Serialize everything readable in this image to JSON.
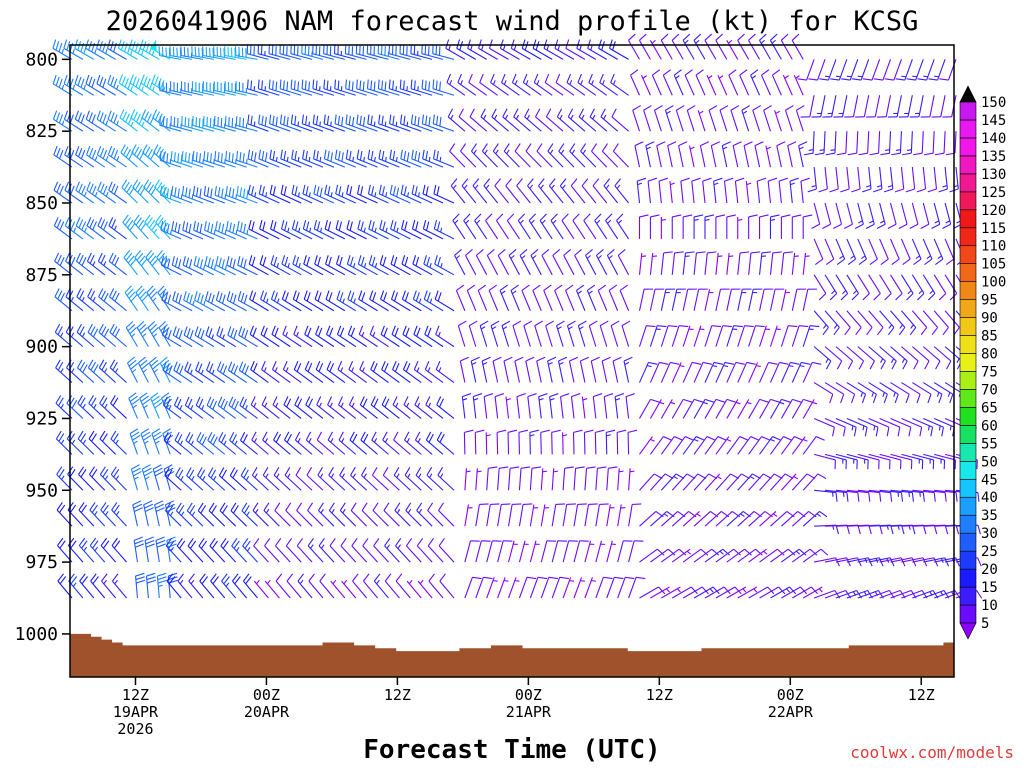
{
  "chart_data": {
    "type": "wind_barb_profile",
    "title": "2026041906 NAM forecast wind profile (kt) for KCSG",
    "xlabel": "Forecast Time (UTC)",
    "ylabel": "",
    "units": "kt",
    "y_axis": {
      "ticks": [
        "800",
        "825",
        "850",
        "875",
        "900",
        "925",
        "950",
        "975",
        "1000"
      ],
      "range": [
        795,
        1015
      ],
      "inverted": true
    },
    "x_axis": {
      "ticks": [
        {
          "hour": 6,
          "line1": "12Z",
          "line2": "19APR",
          "line3": "2026"
        },
        {
          "hour": 18,
          "line1": "00Z",
          "line2": "20APR",
          "line3": ""
        },
        {
          "hour": 30,
          "line1": "12Z",
          "line2": "",
          "line3": ""
        },
        {
          "hour": 42,
          "line1": "00Z",
          "line2": "21APR",
          "line3": ""
        },
        {
          "hour": 54,
          "line1": "12Z",
          "line2": "",
          "line3": ""
        },
        {
          "hour": 66,
          "line1": "00Z",
          "line2": "22APR",
          "line3": ""
        },
        {
          "hour": 78,
          "line1": "12Z",
          "line2": "",
          "line3": ""
        }
      ],
      "range": [
        0,
        81
      ]
    },
    "colorbar": {
      "levels": [
        "5",
        "10",
        "15",
        "20",
        "25",
        "30",
        "35",
        "40",
        "45",
        "50",
        "55",
        "60",
        "65",
        "70",
        "75",
        "80",
        "85",
        "90",
        "95",
        "100",
        "105",
        "110",
        "115",
        "120",
        "125",
        "130",
        "135",
        "140",
        "145",
        "150"
      ],
      "colors": [
        "#8b00ff",
        "#6a0cff",
        "#3c1cff",
        "#1a1aff",
        "#1e3cff",
        "#1e5eff",
        "#1e7eff",
        "#1a9eff",
        "#18c4ff",
        "#18e8e8",
        "#18e8b0",
        "#18e060",
        "#20e020",
        "#60e818",
        "#a8f018",
        "#e8f018",
        "#f0e018",
        "#f0c818",
        "#f0a818",
        "#f08818",
        "#f06818",
        "#f04818",
        "#f02818",
        "#f01818",
        "#f0185a",
        "#f01890",
        "#f018c0",
        "#f018e8",
        "#e818f0",
        "#c818f0"
      ]
    },
    "terrain": {
      "color": "#a0522d",
      "surface_pressure_mb": [
        1000,
        1000,
        1001,
        1002,
        1003,
        1004,
        1004,
        1004,
        1004,
        1004,
        1004,
        1004,
        1004,
        1004,
        1004,
        1004,
        1004,
        1004,
        1004,
        1004,
        1004,
        1004,
        1004,
        1004,
        1003,
        1003,
        1003,
        1004,
        1004,
        1005,
        1005,
        1006,
        1006,
        1006,
        1006,
        1006,
        1006,
        1005,
        1005,
        1005,
        1004,
        1004,
        1004,
        1005,
        1005,
        1005,
        1005,
        1005,
        1005,
        1005,
        1005,
        1005,
        1005,
        1006,
        1006,
        1006,
        1006,
        1006,
        1006,
        1006,
        1005,
        1005,
        1005,
        1005,
        1005,
        1005,
        1005,
        1005,
        1005,
        1005,
        1005,
        1005,
        1005,
        1005,
        1004,
        1004,
        1004,
        1004,
        1004,
        1004,
        1004,
        1004,
        1004,
        1003
      ]
    },
    "barbs": {
      "time_hours_step": 1,
      "levels_mb": [
        800,
        812.5,
        825,
        837.5,
        850,
        862.5,
        875,
        887.5,
        900,
        912.5,
        925,
        937.5,
        950,
        962.5,
        975,
        987.5
      ],
      "regimes": [
        {
          "hours": [
            0,
            6
          ],
          "speed_kt_top": 35,
          "speed_kt_bottom": 20,
          "dir_deg_top": 300,
          "dir_deg_bottom": 320
        },
        {
          "hours": [
            6,
            10
          ],
          "speed_kt_top": 45,
          "speed_kt_bottom": 30,
          "dir_deg_top": 300,
          "dir_deg_bottom": 355
        },
        {
          "hours": [
            10,
            18
          ],
          "speed_kt_top": 40,
          "speed_kt_bottom": 20,
          "dir_deg_top": 280,
          "dir_deg_bottom": 320
        },
        {
          "hours": [
            18,
            36
          ],
          "speed_kt_top": 30,
          "speed_kt_bottom": 10,
          "dir_deg_top": 285,
          "dir_deg_bottom": 320
        },
        {
          "hours": [
            36,
            52
          ],
          "speed_kt_top": 15,
          "speed_kt_bottom": 8,
          "dir_deg_top": 300,
          "dir_deg_bottom": 20
        },
        {
          "hours": [
            52,
            68
          ],
          "speed_kt_top": 10,
          "speed_kt_bottom": 10,
          "dir_deg_top": 330,
          "dir_deg_bottom": 60
        },
        {
          "hours": [
            68,
            81
          ],
          "speed_kt_top": 12,
          "speed_kt_bottom": 12,
          "dir_deg_top": 200,
          "dir_deg_bottom": 70
        }
      ]
    }
  },
  "credit": "coolwx.com/models"
}
